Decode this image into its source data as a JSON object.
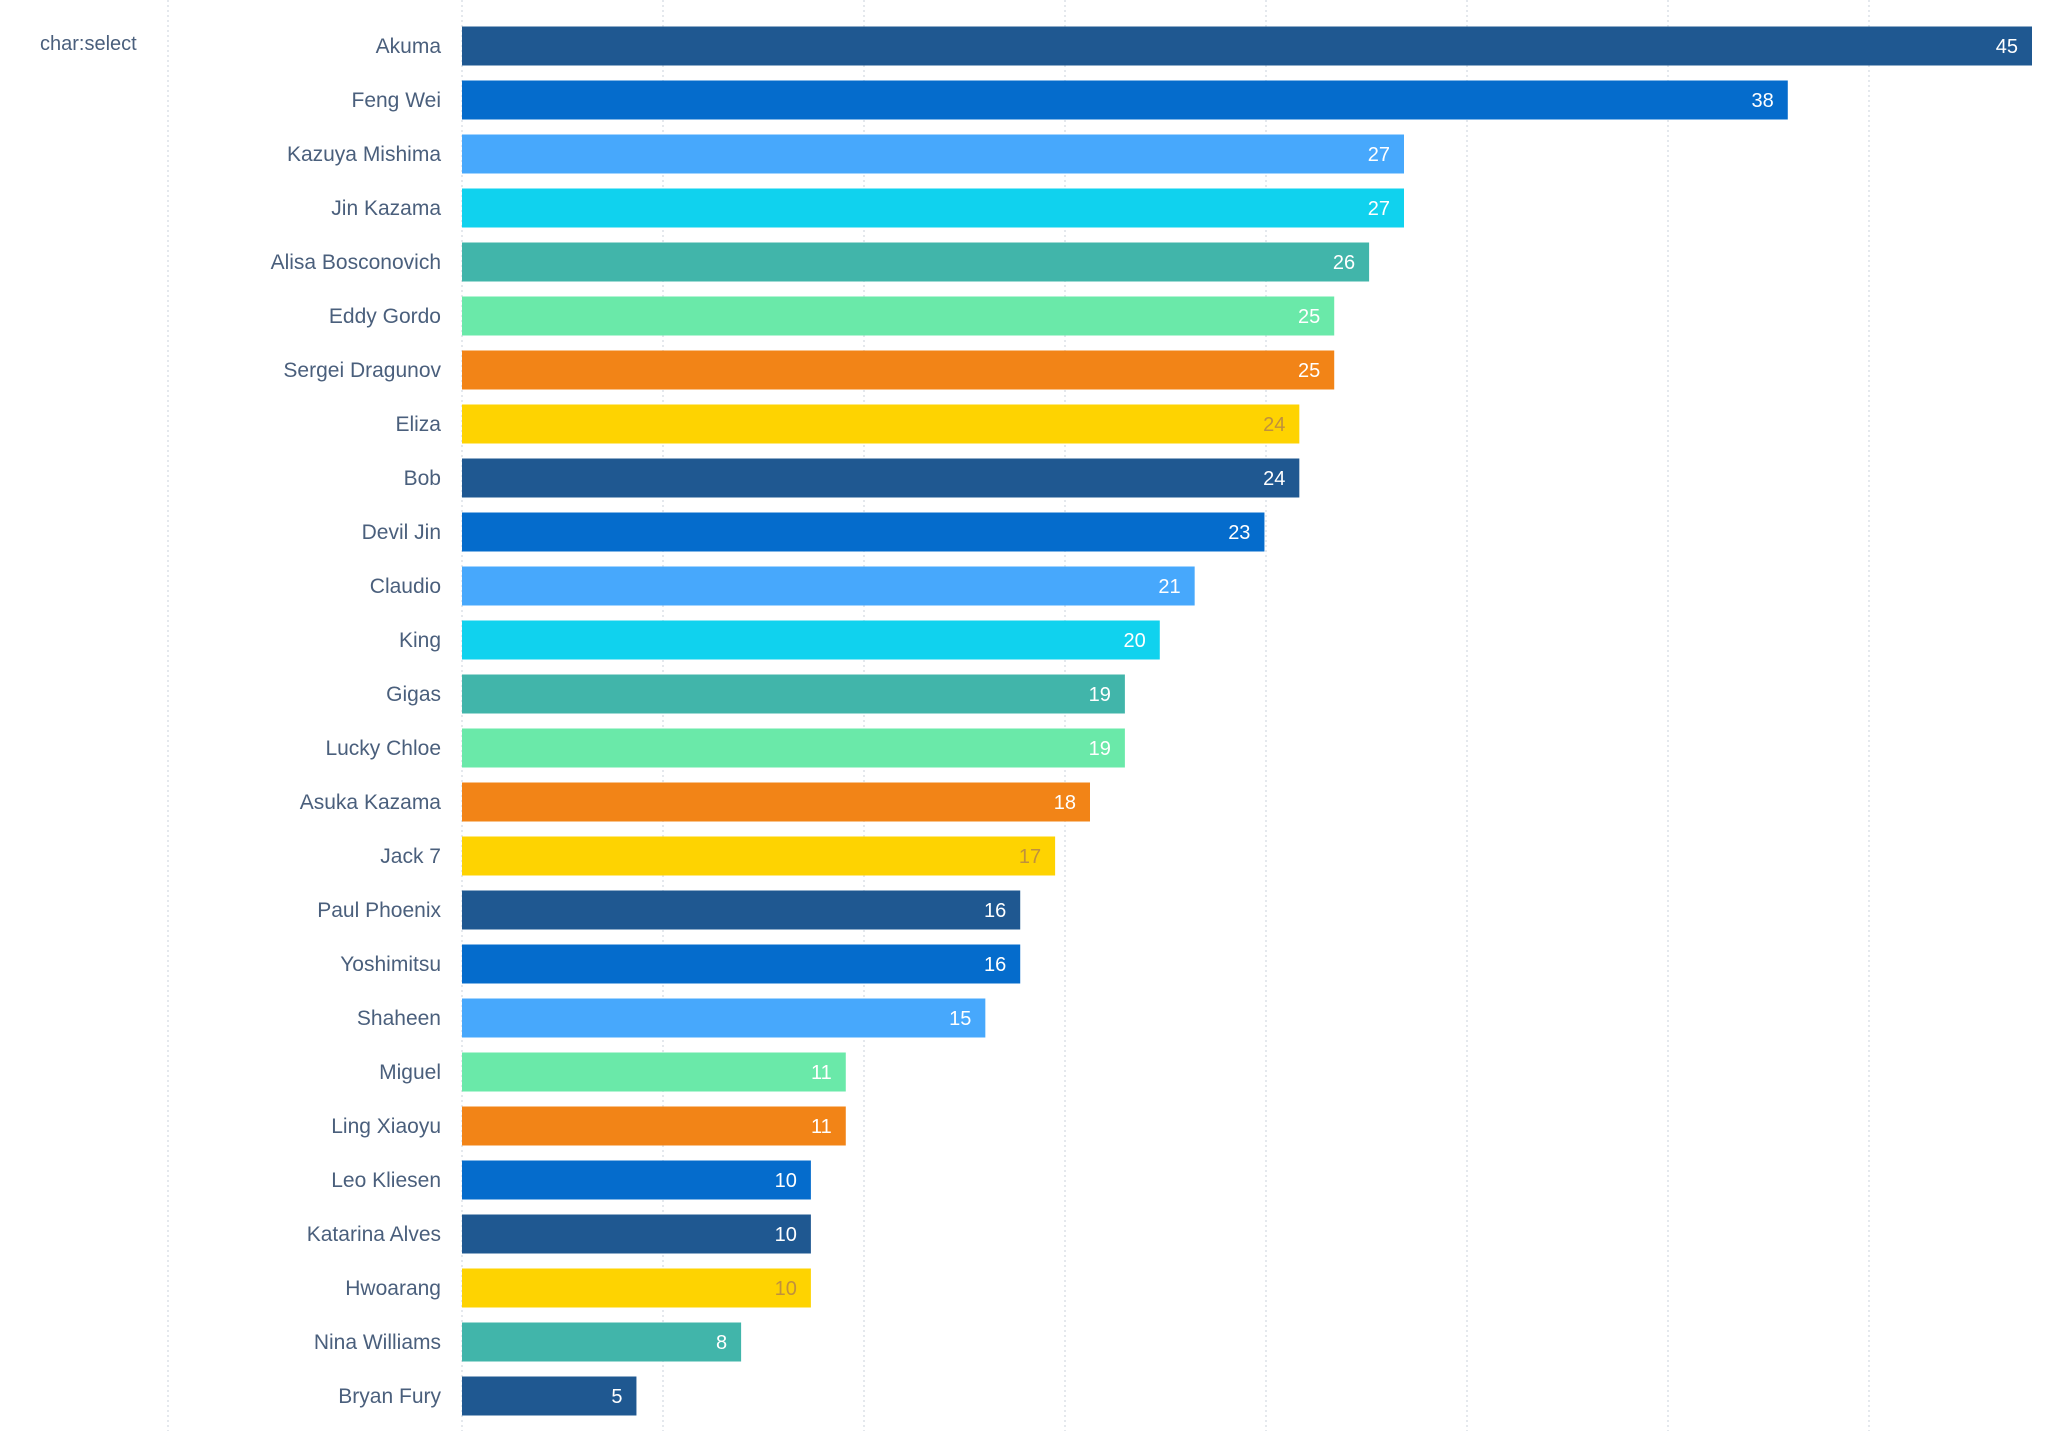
{
  "chart_data": {
    "type": "bar",
    "orientation": "horizontal",
    "group_label": "char:select",
    "categories": [
      "Akuma",
      "Feng Wei",
      "Kazuya Mishima",
      "Jin Kazama",
      "Alisa Bosconovich",
      "Eddy Gordo",
      "Sergei Dragunov",
      "Eliza",
      "Bob",
      "Devil Jin",
      "Claudio",
      "King",
      "Gigas",
      "Lucky Chloe",
      "Asuka Kazama",
      "Jack 7",
      "Paul Phoenix",
      "Yoshimitsu",
      "Shaheen",
      "Miguel",
      "Ling Xiaoyu",
      "Leo Kliesen",
      "Katarina Alves",
      "Hwoarang",
      "Nina Williams",
      "Bryan Fury"
    ],
    "values": [
      45,
      38,
      27,
      27,
      26,
      25,
      25,
      24,
      24,
      23,
      21,
      20,
      19,
      19,
      18,
      17,
      16,
      16,
      15,
      11,
      11,
      10,
      10,
      10,
      8,
      5
    ],
    "bar_colors": [
      "#1f5891",
      "#056ccc",
      "#47a8fc",
      "#10d2ee",
      "#41b5aa",
      "#6ae9a9",
      "#f28417",
      "#fed301",
      "#1f5891",
      "#056ccc",
      "#47a8fc",
      "#10d2ee",
      "#41b5aa",
      "#6ae9a9",
      "#f28417",
      "#fed301",
      "#1f5891",
      "#056ccc",
      "#47a8fc",
      "#6ae9a9",
      "#f28417",
      "#056ccc",
      "#1f5891",
      "#fed301",
      "#41b5aa",
      "#1f5891"
    ],
    "label_colors": [
      "#ffffff",
      "#ffffff",
      "#ffffff",
      "#ffffff",
      "#ffffff",
      "#ffffff",
      "#ffffff",
      "#c0913c",
      "#ffffff",
      "#ffffff",
      "#ffffff",
      "#ffffff",
      "#ffffff",
      "#ffffff",
      "#ffffff",
      "#c0913c",
      "#ffffff",
      "#ffffff",
      "#ffffff",
      "#ffffff",
      "#ffffff",
      "#ffffff",
      "#ffffff",
      "#c0913c",
      "#ffffff",
      "#ffffff"
    ],
    "xlim": [
      0,
      46
    ],
    "grid": true,
    "data_labels": "inside-end",
    "category_label_color": "#4a5f7c"
  }
}
